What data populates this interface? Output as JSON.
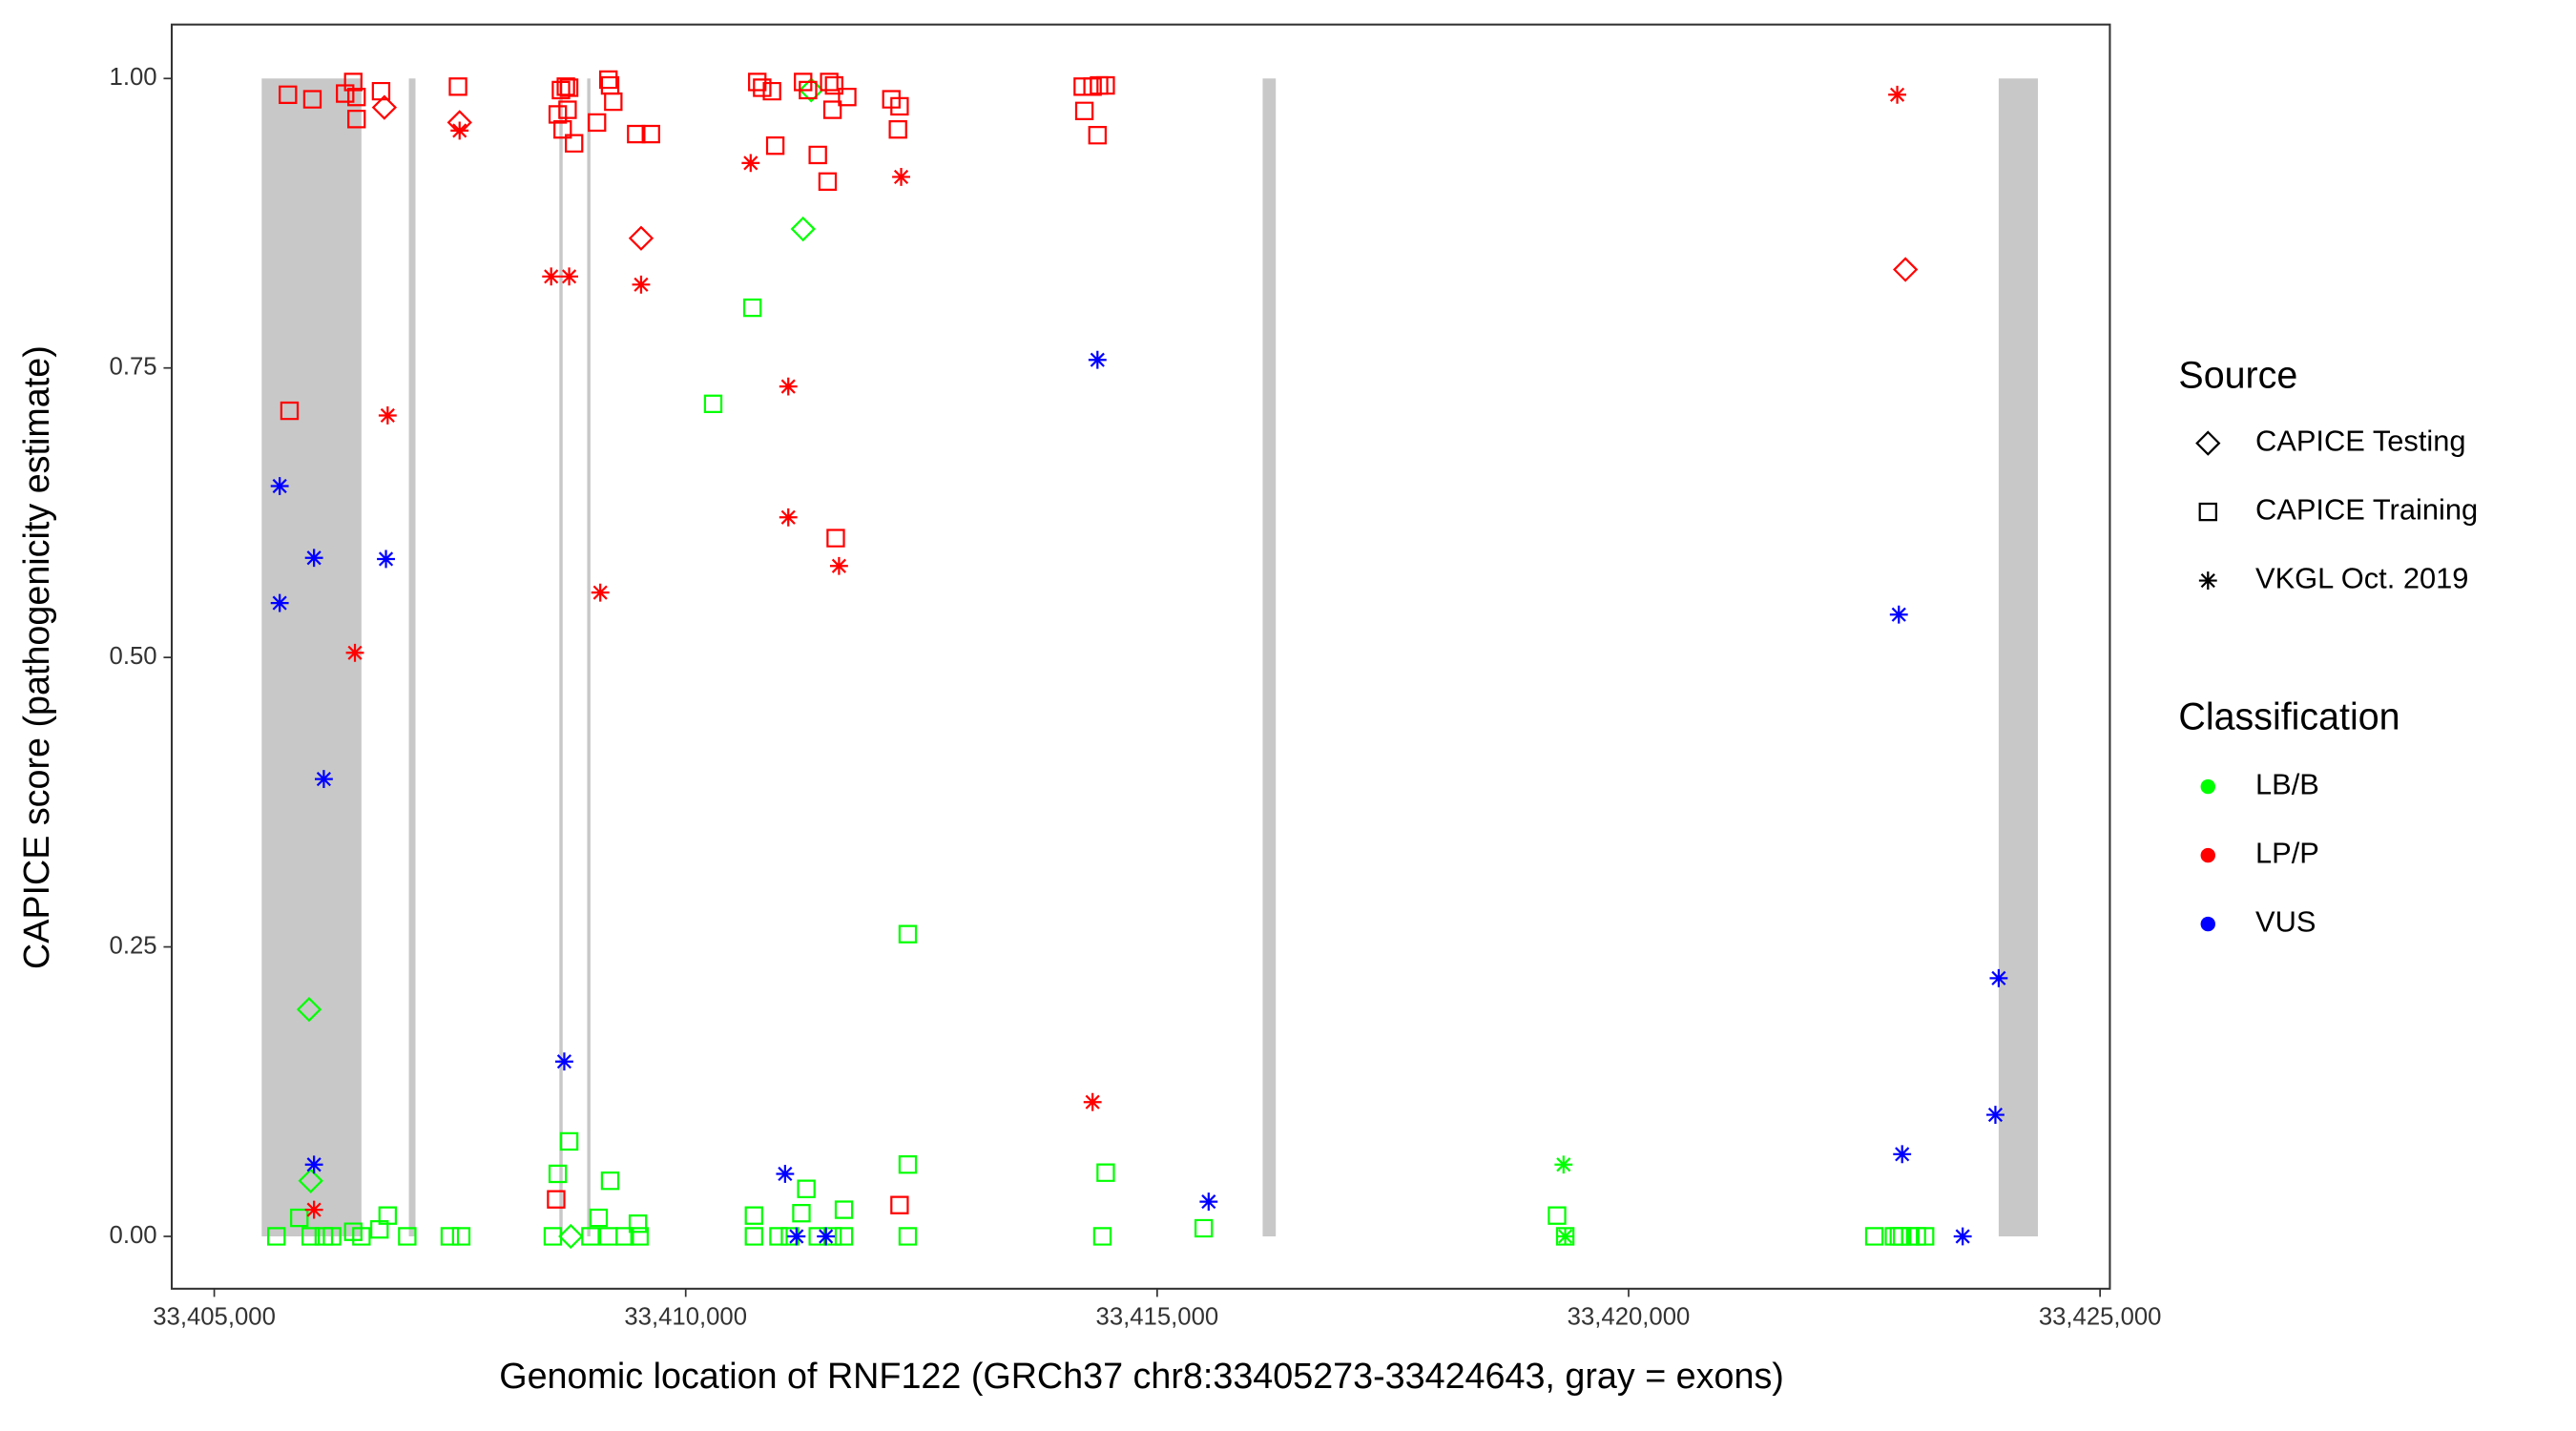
{
  "chart_data": {
    "type": "scatter",
    "x_label": "Genomic location of RNF122 (GRCh37 chr8:33405273-33424643, gray = exons)",
    "y_label": "CAPICE score (pathogenicity estimate)",
    "xlim": [
      33404549,
      33425104
    ],
    "ylim": [
      -0.0452,
      1.0466
    ],
    "xticks": [
      {
        "value": 33405000,
        "label": "33,405,000"
      },
      {
        "value": 33410000,
        "label": "33,410,000"
      },
      {
        "value": 33415000,
        "label": "33,415,000"
      },
      {
        "value": 33420000,
        "label": "33,420,000"
      },
      {
        "value": 33425000,
        "label": "33,425,000"
      }
    ],
    "yticks": [
      {
        "value": 0,
        "label": "0.00"
      },
      {
        "value": 0.25,
        "label": "0.25"
      },
      {
        "value": 0.5,
        "label": "0.50"
      },
      {
        "value": 0.75,
        "label": "0.75"
      },
      {
        "value": 1,
        "label": "1.00"
      }
    ],
    "exon_color": "#c8c8c8",
    "exons": [
      [
        33405503,
        33406561
      ],
      [
        33407064,
        33407134
      ],
      [
        33408660,
        33408695
      ],
      [
        33408955,
        33408990
      ],
      [
        33416119,
        33416258
      ],
      [
        33423925,
        33424341
      ]
    ],
    "legend_source_title": "Source",
    "sources": [
      {
        "name": "CAPICE Testing",
        "shape": "diamond"
      },
      {
        "name": "CAPICE Training",
        "shape": "square"
      },
      {
        "name": "VKGL Oct. 2019",
        "shape": "asterisk"
      }
    ],
    "legend_class_title": "Classification",
    "classifications": [
      {
        "name": "LB/B",
        "color": "#00ff00"
      },
      {
        "name": "LP/P",
        "color": "#ff0000"
      },
      {
        "name": "VUS",
        "color": "#0000ff"
      }
    ],
    "series": [
      {
        "source": 0,
        "classification": 0,
        "x": [
          33406006,
          33406023,
          33411245,
          33408781,
          33411331
        ],
        "y": [
          0.196,
          0.048,
          0.87,
          0,
          0.99
        ]
      },
      {
        "source": 0,
        "classification": 1,
        "x": [
          33406804,
          33407602,
          33409527,
          33422936
        ],
        "y": [
          0.975,
          0.962,
          0.862,
          0.835
        ]
      },
      {
        "source": 1,
        "classification": 0,
        "x": [
          33405659,
          33405902,
          33406023,
          33406162,
          33406249,
          33406474,
          33406561,
          33406752,
          33406839,
          33407047,
          33407498,
          33407619,
          33408591,
          33408643,
          33408764,
          33408990,
          33409076,
          33409198,
          33409180,
          33409354,
          33409493,
          33409510,
          33410707,
          33410291,
          33410724,
          33410724,
          33410984,
          33411106,
          33411227,
          33411279,
          33411401,
          33411557,
          33411678,
          33411678,
          33412355,
          33412355,
          33412355,
          33414454,
          33414419,
          33415494,
          33419241,
          33419328,
          33422606,
          33422814,
          33422901,
          33422988,
          33423057,
          33423144,
          33422866
        ],
        "y": [
          0,
          0.016,
          0,
          0,
          0,
          0.004,
          0,
          0.006,
          0.018,
          0,
          0,
          0,
          0,
          0.054,
          0.082,
          0,
          0.016,
          0.048,
          0,
          0,
          0.011,
          0,
          0.802,
          0.719,
          0.018,
          0,
          0,
          0,
          0.02,
          0.041,
          0,
          0,
          0.023,
          0,
          0.261,
          0.062,
          0,
          0.055,
          0,
          0.007,
          0.018,
          0,
          0,
          0,
          0,
          0,
          0,
          0,
          0
        ]
      },
      {
        "source": 1,
        "classification": 1,
        "x": [
          33405781,
          33406041,
          33406388,
          33406474,
          33406509,
          33406769,
          33406509,
          33405798,
          33407585,
          33408643,
          33408677,
          33408729,
          33408764,
          33408695,
          33408747,
          33408816,
          33409059,
          33409180,
          33409198,
          33409232,
          33409475,
          33409631,
          33410759,
          33410811,
          33410915,
          33411245,
          33411297,
          33410950,
          33411401,
          33411522,
          33411574,
          33411557,
          33411713,
          33411505,
          33412181,
          33412268,
          33412251,
          33414211,
          33414315,
          33414384,
          33414454,
          33414228,
          33414367,
          33411591,
          33408626,
          33412268
        ],
        "y": [
          0.986,
          0.982,
          0.987,
          0.997,
          0.984,
          0.989,
          0.965,
          0.713,
          0.993,
          0.969,
          0.99,
          0.993,
          0.992,
          0.956,
          0.973,
          0.944,
          0.962,
          0.999,
          0.994,
          0.98,
          0.952,
          0.952,
          0.997,
          0.992,
          0.989,
          0.997,
          0.99,
          0.942,
          0.934,
          0.997,
          0.994,
          0.973,
          0.984,
          0.911,
          0.982,
          0.976,
          0.956,
          0.993,
          0.993,
          0.994,
          0.994,
          0.972,
          0.951,
          0.603,
          0.032,
          0.027
        ]
      },
      {
        "source": 2,
        "classification": 0,
        "x": [
          33419310,
          33419328
        ],
        "y": [
          0.062,
          0
        ]
      },
      {
        "source": 2,
        "classification": 1,
        "x": [
          33407602,
          33408573,
          33408764,
          33409527,
          33410689,
          33411088,
          33411088,
          33411626,
          33412285,
          33409094,
          33406839,
          33406492,
          33406058,
          33414315,
          33422849
        ],
        "y": [
          0.955,
          0.829,
          0.829,
          0.822,
          0.927,
          0.734,
          0.621,
          0.579,
          0.915,
          0.556,
          0.709,
          0.504,
          0.023,
          0.116,
          0.986
        ]
      },
      {
        "source": 2,
        "classification": 2,
        "x": [
          33405694,
          33405694,
          33406058,
          33406821,
          33406162,
          33406058,
          33408712,
          33411054,
          33411175,
          33411487,
          33414367,
          33415546,
          33422866,
          33422901,
          33423543,
          33423925,
          33423890
        ],
        "y": [
          0.648,
          0.547,
          0.586,
          0.585,
          0.395,
          0.062,
          0.151,
          0.054,
          0,
          0,
          0.757,
          0.03,
          0.537,
          0.071,
          0,
          0.223,
          0.105
        ]
      }
    ]
  }
}
